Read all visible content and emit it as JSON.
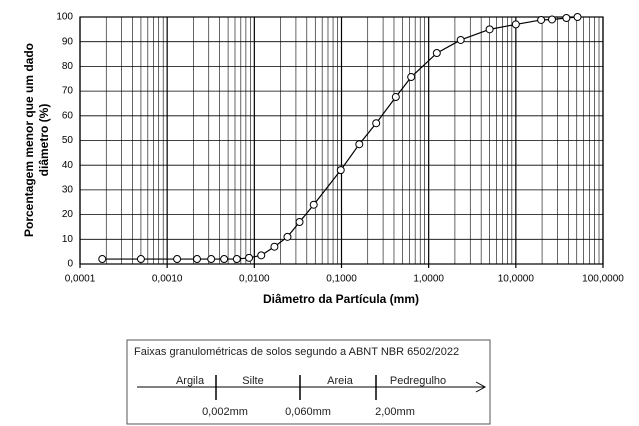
{
  "chart_data": {
    "type": "line",
    "xscale": "log",
    "grid": true,
    "color": "#000000",
    "xlabel": "Diâmetro da Partícula (mm)",
    "ylabel": [
      "Porcentagem menor que um dado",
      "diâmetro (%)"
    ],
    "x": [
      0.00018,
      0.0005,
      0.0013,
      0.0022,
      0.0032,
      0.0045,
      0.0063,
      0.0087,
      0.012,
      0.017,
      0.024,
      0.033,
      0.048,
      0.098,
      0.16,
      0.25,
      0.42,
      0.63,
      1.24,
      2.33,
      5.0,
      10,
      19.5,
      26,
      38,
      51
    ],
    "values": [
      2,
      2,
      2,
      2,
      2,
      2,
      2,
      2.5,
      3.5,
      7,
      11,
      17,
      24,
      38,
      48.5,
      57,
      67.6,
      75.7,
      85.4,
      90.7,
      95,
      97,
      98.8,
      99,
      99.6,
      100
    ],
    "xlim": [
      0.0001,
      100
    ],
    "ylim": [
      0,
      100
    ],
    "xticks": [
      {
        "value": 0.0001,
        "label": "0,0001"
      },
      {
        "value": 0.001,
        "label": "0,0010"
      },
      {
        "value": 0.01,
        "label": "0,0100"
      },
      {
        "value": 0.1,
        "label": "0,1000"
      },
      {
        "value": 1,
        "label": "1,0000"
      },
      {
        "value": 10,
        "label": "10,0000"
      },
      {
        "value": 100,
        "label": "100,0000"
      }
    ],
    "yticks": [
      0,
      10,
      20,
      30,
      40,
      50,
      60,
      70,
      80,
      90,
      100
    ]
  },
  "classification": {
    "title": "Faixas granulométricas de solos segundo a ABNT NBR 6502/2022",
    "classes": [
      "Argila",
      "Silte",
      "Areia",
      "Pedregulho"
    ],
    "limits": [
      "0,002mm",
      "0,060mm",
      "2,00mm"
    ]
  }
}
